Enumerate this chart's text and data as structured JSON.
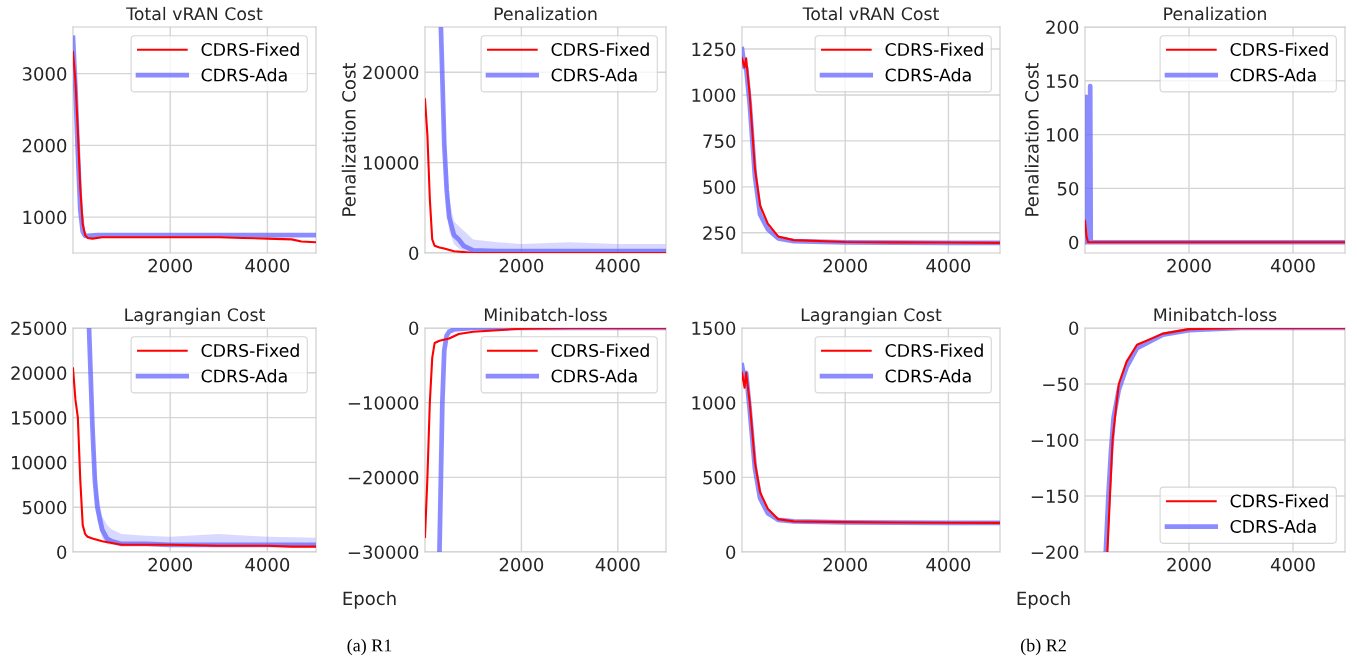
{
  "chart_data": [
    {
      "type": "line",
      "title": "Total vRAN Cost",
      "xlim": [
        0,
        5000
      ],
      "xticks": [
        2000,
        4000
      ],
      "ylim": [
        500,
        3650
      ],
      "yticks": [
        1000,
        2000,
        3000
      ],
      "grid": true,
      "legend": "top right",
      "series": [
        {
          "name": "CDRS-Fixed",
          "color": "#ff0000",
          "x": [
            0,
            50,
            100,
            150,
            200,
            250,
            300,
            400,
            600,
            1000,
            2000,
            3000,
            3500,
            4000,
            4500,
            4700,
            5000
          ],
          "values": [
            3300,
            2900,
            2200,
            1400,
            900,
            750,
            710,
            700,
            720,
            720,
            720,
            720,
            710,
            700,
            690,
            660,
            650
          ]
        },
        {
          "name": "CDRS-Ada",
          "color": "#6666ff",
          "x": [
            0,
            50,
            100,
            150,
            200,
            250,
            300,
            500,
            1000,
            2000,
            3000,
            4000,
            5000
          ],
          "values": [
            3500,
            2800,
            1900,
            1100,
            800,
            740,
            740,
            750,
            750,
            750,
            750,
            750,
            750
          ]
        }
      ]
    },
    {
      "type": "line",
      "title": "Penalization",
      "ylabel": "Penalization Cost",
      "xlim": [
        0,
        5000
      ],
      "xticks": [
        2000,
        4000
      ],
      "ylim": [
        0,
        25000
      ],
      "yticks": [
        0,
        10000,
        20000
      ],
      "grid": true,
      "legend": "top right",
      "series": [
        {
          "name": "CDRS-Fixed",
          "color": "#ff0000",
          "x": [
            0,
            50,
            100,
            150,
            200,
            300,
            400,
            600,
            800,
            1000,
            5000
          ],
          "values": [
            17000,
            13000,
            6000,
            1500,
            800,
            600,
            500,
            200,
            100,
            0,
            0
          ]
        },
        {
          "name": "CDRS-Ada",
          "color": "#6666ff",
          "x": [
            330,
            400,
            450,
            500,
            600,
            700,
            800,
            1000,
            1500,
            2000,
            3000,
            4000,
            5000
          ],
          "values": [
            25000,
            12000,
            7000,
            4000,
            2000,
            1500,
            800,
            300,
            200,
            200,
            200,
            200,
            200
          ],
          "lower": [
            25000,
            9000,
            5000,
            2500,
            1000,
            500,
            200,
            0,
            0,
            0,
            0,
            0,
            0
          ],
          "upper": [
            25000,
            16000,
            10000,
            6000,
            3500,
            3000,
            2500,
            1500,
            1200,
            1000,
            1200,
            1000,
            1000
          ]
        }
      ]
    },
    {
      "type": "line",
      "title": "Total vRAN Cost",
      "xlim": [
        0,
        5000
      ],
      "xticks": [
        2000,
        4000
      ],
      "ylim": [
        140,
        1370
      ],
      "yticks": [
        250,
        500,
        750,
        1000,
        1250
      ],
      "grid": true,
      "legend": "top right",
      "series": [
        {
          "name": "CDRS-Fixed",
          "color": "#ff0000",
          "x": [
            0,
            50,
            80,
            150,
            250,
            350,
            500,
            700,
            1000,
            2000,
            3000,
            4000,
            5000
          ],
          "values": [
            1200,
            1150,
            1200,
            1000,
            600,
            400,
            300,
            230,
            210,
            200,
            198,
            197,
            195
          ]
        },
        {
          "name": "CDRS-Ada",
          "color": "#6666ff",
          "x": [
            0,
            50,
            80,
            150,
            250,
            350,
            500,
            700,
            1000,
            2000,
            3000,
            4000,
            5000
          ],
          "values": [
            1250,
            1150,
            1150,
            950,
            560,
            350,
            270,
            220,
            205,
            198,
            196,
            195,
            195
          ]
        }
      ]
    },
    {
      "type": "line",
      "title": "Penalization",
      "ylabel": "Penalization Cost",
      "xlim": [
        0,
        5000
      ],
      "xticks": [
        2000,
        4000
      ],
      "ylim": [
        -10,
        200
      ],
      "yticks": [
        0,
        50,
        100,
        150,
        200
      ],
      "grid": true,
      "legend": "top right",
      "series": [
        {
          "name": "CDRS-Fixed",
          "color": "#ff0000",
          "x": [
            0,
            30,
            60,
            5000
          ],
          "values": [
            20,
            5,
            0,
            0
          ]
        },
        {
          "name": "CDRS-Ada",
          "color": "#6666ff",
          "x": [
            0,
            20,
            40,
            90,
            100,
            110,
            130,
            5000
          ],
          "values": [
            0,
            135,
            0,
            0,
            145,
            2,
            0,
            0
          ]
        }
      ]
    },
    {
      "type": "line",
      "title": "Lagrangian Cost",
      "xlabel": "Epoch",
      "annotations": [
        "(a) R1"
      ],
      "xlim": [
        0,
        5000
      ],
      "xticks": [
        2000,
        4000
      ],
      "ylim": [
        0,
        25000
      ],
      "yticks": [
        0,
        5000,
        10000,
        15000,
        20000,
        25000
      ],
      "grid": true,
      "legend": "top right",
      "series": [
        {
          "name": "CDRS-Fixed",
          "color": "#ff0000",
          "x": [
            0,
            50,
            100,
            150,
            200,
            250,
            300,
            400,
            600,
            1000,
            2000,
            3000,
            4000,
            4500,
            5000
          ],
          "values": [
            20500,
            17000,
            15000,
            8000,
            3000,
            2000,
            1700,
            1500,
            1200,
            800,
            800,
            700,
            700,
            600,
            600
          ]
        },
        {
          "name": "CDRS-Ada",
          "color": "#6666ff",
          "x": [
            330,
            400,
            450,
            500,
            600,
            700,
            800,
            1000,
            1500,
            2000,
            3000,
            4000,
            5000
          ],
          "values": [
            25000,
            14000,
            8000,
            5000,
            2500,
            1500,
            1200,
            900,
            900,
            800,
            800,
            800,
            800
          ],
          "lower": [
            25000,
            12000,
            6000,
            3500,
            1500,
            900,
            800,
            700,
            700,
            700,
            700,
            700,
            700
          ],
          "upper": [
            25000,
            17000,
            11000,
            7000,
            4000,
            3000,
            2500,
            2000,
            1800,
            1700,
            2000,
            1700,
            1600
          ]
        }
      ]
    },
    {
      "type": "line",
      "title": "Minibatch-loss",
      "xlim": [
        0,
        5000
      ],
      "xticks": [
        2000,
        4000
      ],
      "ylim": [
        -30000,
        0
      ],
      "yticks": [
        {
          "value": -30000,
          "label": "−30000"
        },
        {
          "value": -20000,
          "label": "−20000"
        },
        {
          "value": -10000,
          "label": "−10000"
        },
        0
      ],
      "grid": true,
      "legend": "top right",
      "series": [
        {
          "name": "CDRS-Fixed",
          "color": "#ff0000",
          "x": [
            0,
            50,
            100,
            150,
            200,
            300,
            500,
            700,
            1000,
            2000,
            3000,
            4000,
            5000
          ],
          "values": [
            -28000,
            -20000,
            -10000,
            -4000,
            -2000,
            -1700,
            -1400,
            -800,
            -500,
            -100,
            0,
            0,
            0
          ]
        },
        {
          "name": "CDRS-Ada",
          "color": "#6666ff",
          "x": [
            300,
            330,
            360,
            400,
            450,
            500,
            600,
            800,
            1000,
            2000,
            5000
          ],
          "values": [
            -30000,
            -20000,
            -10000,
            -3000,
            -1000,
            -500,
            -200,
            -100,
            0,
            0,
            0
          ]
        }
      ]
    },
    {
      "type": "line",
      "title": "Lagrangian Cost",
      "xlabel": "Epoch",
      "annotations": [
        "(b) R2"
      ],
      "xlim": [
        0,
        5000
      ],
      "xticks": [
        2000,
        4000
      ],
      "ylim": [
        0,
        1500
      ],
      "yticks": [
        0,
        500,
        1000,
        1500
      ],
      "grid": true,
      "legend": "top right",
      "series": [
        {
          "name": "CDRS-Fixed",
          "color": "#ff0000",
          "x": [
            0,
            50,
            80,
            150,
            250,
            350,
            500,
            700,
            1000,
            2000,
            3000,
            4000,
            5000
          ],
          "values": [
            1200,
            1100,
            1200,
            1000,
            600,
            400,
            290,
            220,
            205,
            200,
            198,
            196,
            195
          ]
        },
        {
          "name": "CDRS-Ada",
          "color": "#6666ff",
          "x": [
            0,
            50,
            80,
            150,
            250,
            350,
            500,
            700,
            1000,
            2000,
            3000,
            4000,
            5000
          ],
          "values": [
            1250,
            1150,
            1200,
            950,
            560,
            360,
            260,
            215,
            205,
            198,
            196,
            195,
            195
          ]
        }
      ]
    },
    {
      "type": "line",
      "title": "Minibatch-loss",
      "xlim": [
        0,
        5000
      ],
      "xticks": [
        2000,
        4000
      ],
      "ylim": [
        -200,
        0
      ],
      "yticks": [
        {
          "value": -200,
          "label": "−200"
        },
        {
          "value": -150,
          "label": "−150"
        },
        {
          "value": -100,
          "label": "−100"
        },
        {
          "value": -50,
          "label": "−50"
        },
        0
      ],
      "grid": true,
      "legend": "bottom right",
      "series": [
        {
          "name": "CDRS-Fixed",
          "color": "#ff0000",
          "x": [
            430,
            480,
            530,
            600,
            650,
            800,
            1000,
            1500,
            2000,
            3000,
            5000
          ],
          "values": [
            -200,
            -150,
            -100,
            -70,
            -50,
            -30,
            -15,
            -5,
            -1,
            0,
            0
          ]
        },
        {
          "name": "CDRS-Ada",
          "color": "#6666ff",
          "x": [
            400,
            450,
            500,
            550,
            650,
            800,
            1000,
            1500,
            2000,
            3000,
            5000
          ],
          "values": [
            -200,
            -150,
            -110,
            -80,
            -55,
            -35,
            -18,
            -6,
            -2,
            0,
            0
          ]
        }
      ]
    }
  ]
}
